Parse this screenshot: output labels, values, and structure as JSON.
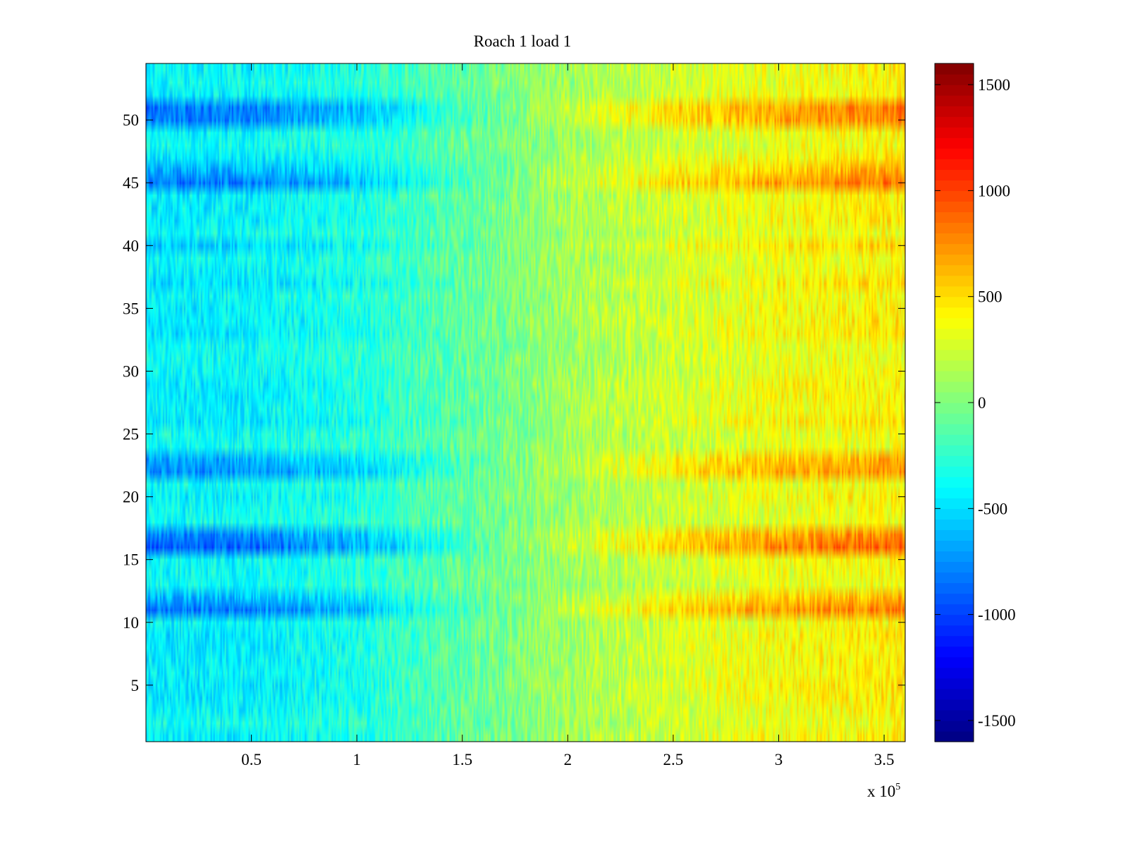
{
  "chart_data": {
    "type": "heatmap",
    "title": "Roach 1 load 1",
    "xlabel": "",
    "ylabel": "",
    "x_multiplier": {
      "base": "x 10",
      "exponent": "5"
    },
    "xlim": [
      0,
      3.6
    ],
    "ylim": [
      0.5,
      54.5
    ],
    "rows": 54,
    "x_ticks": [
      {
        "value": 0.5,
        "label": "0.5"
      },
      {
        "value": 1,
        "label": "1"
      },
      {
        "value": 1.5,
        "label": "1.5"
      },
      {
        "value": 2,
        "label": "2"
      },
      {
        "value": 2.5,
        "label": "2.5"
      },
      {
        "value": 3,
        "label": "3"
      },
      {
        "value": 3.5,
        "label": "3.5"
      }
    ],
    "y_ticks": [
      {
        "value": 5,
        "label": "5"
      },
      {
        "value": 10,
        "label": "10"
      },
      {
        "value": 15,
        "label": "15"
      },
      {
        "value": 20,
        "label": "20"
      },
      {
        "value": 25,
        "label": "25"
      },
      {
        "value": 30,
        "label": "30"
      },
      {
        "value": 35,
        "label": "35"
      },
      {
        "value": 40,
        "label": "40"
      },
      {
        "value": 45,
        "label": "45"
      },
      {
        "value": 50,
        "label": "50"
      }
    ],
    "colorbar": {
      "colormap": "jet",
      "clim": [
        -1600,
        1600
      ],
      "ticks": [
        {
          "value": 1500,
          "label": "1500"
        },
        {
          "value": 1000,
          "label": "1000"
        },
        {
          "value": 500,
          "label": "500"
        },
        {
          "value": 0,
          "label": "0"
        },
        {
          "value": -500,
          "label": "-500"
        },
        {
          "value": -1000,
          "label": "-1000"
        },
        {
          "value": -1500,
          "label": "-1500"
        }
      ]
    },
    "value_profile": {
      "description_x": [
        0,
        0.5,
        1.0,
        1.5,
        2.0,
        2.5,
        3.0,
        3.6
      ],
      "base_trend": [
        -420,
        -400,
        -300,
        -100,
        100,
        250,
        350,
        420
      ],
      "strong_rows": [
        {
          "row": 51,
          "amplitude": 2.0
        },
        {
          "row": 50,
          "amplitude": 1.9
        },
        {
          "row": 45,
          "amplitude": 2.0
        },
        {
          "row": 46,
          "amplitude": 1.6
        },
        {
          "row": 22,
          "amplitude": 1.8
        },
        {
          "row": 23,
          "amplitude": 1.6
        },
        {
          "row": 16,
          "amplitude": 2.2
        },
        {
          "row": 17,
          "amplitude": 1.9
        },
        {
          "row": 11,
          "amplitude": 2.0
        },
        {
          "row": 12,
          "amplitude": 1.5
        },
        {
          "row": 40,
          "amplitude": 1.3
        },
        {
          "row": 34,
          "amplitude": 1.1
        },
        {
          "row": 28,
          "amplitude": 1.1
        }
      ]
    }
  },
  "colors": {
    "axis": "#000000",
    "background": "#ffffff"
  }
}
